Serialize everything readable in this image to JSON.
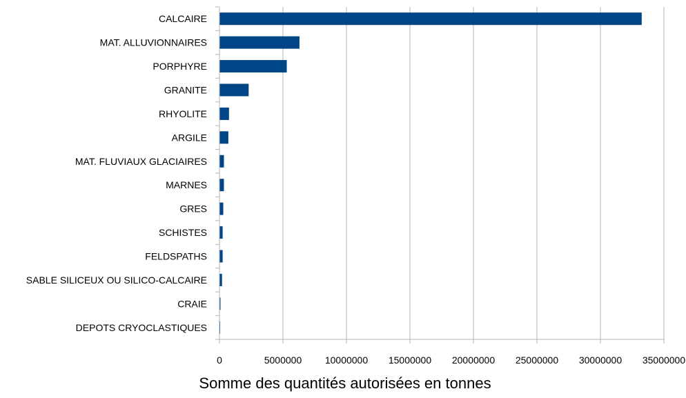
{
  "chart_data": {
    "type": "bar",
    "orientation": "horizontal",
    "categories": [
      "CALCAIRE",
      "MAT. ALLUVIONNAIRES",
      "PORPHYRE",
      "GRANITE",
      "RHYOLITE",
      "ARGILE",
      "MAT. FLUVIAUX GLACIAIRES",
      "MARNES",
      "GRES",
      "SCHISTES",
      "FELDSPATHS",
      "SABLE SILICEUX OU SILICO-CALCAIRE",
      "CRAIE",
      "DEPOTS CRYOCLASTIQUES"
    ],
    "values": [
      33250000,
      6300000,
      5300000,
      2300000,
      750000,
      700000,
      350000,
      350000,
      300000,
      250000,
      250000,
      200000,
      80000,
      50000
    ],
    "xlabel": "Somme des quantités autorisées en tonnes",
    "ylabel": "",
    "xlim": [
      0,
      35000000
    ],
    "xticks": [
      "0",
      "5000000",
      "10000000",
      "15000000",
      "20000000",
      "25000000",
      "30000000",
      "35000000"
    ],
    "grid": "vertical",
    "legend": "none",
    "bar_color": "#004586"
  }
}
